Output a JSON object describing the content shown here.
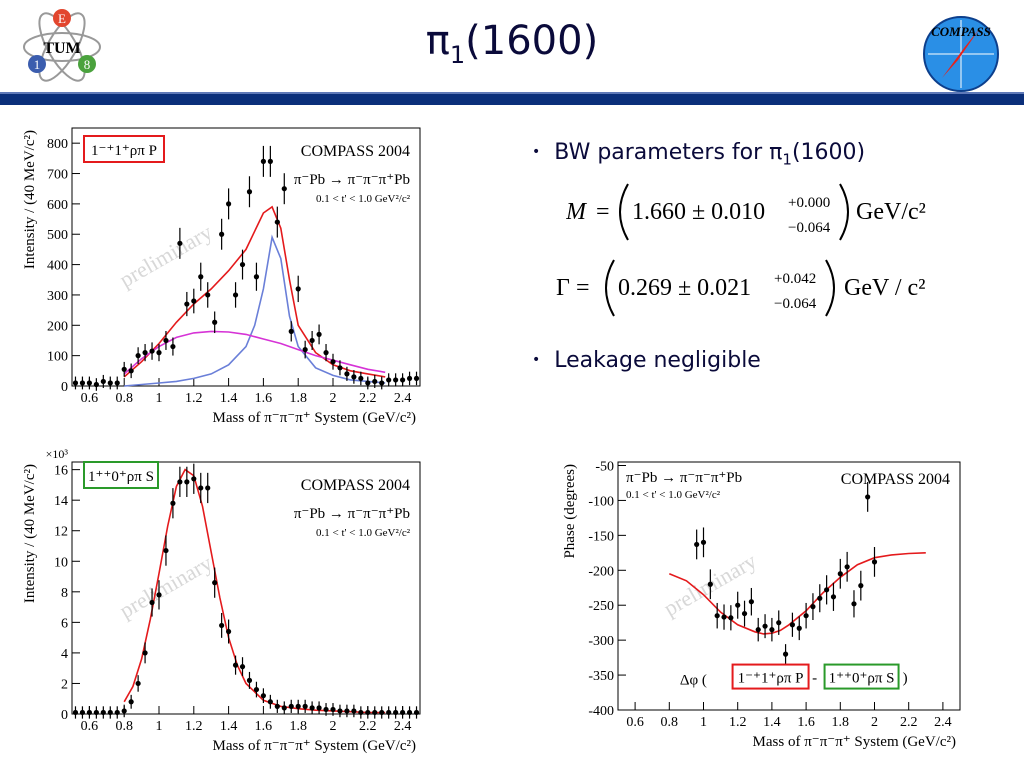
{
  "slide": {
    "title": "π1(1600)",
    "title_main": "π",
    "title_sub": "1",
    "title_rest": "(1600)"
  },
  "logos": {
    "left": {
      "letters": [
        "E",
        "1",
        "8"
      ],
      "name": "TUM"
    },
    "right": {
      "name": "COMPASS"
    }
  },
  "bullets": [
    {
      "text_main": "BW parameters for π",
      "text_sub": "1",
      "text_rest": "(1600)"
    },
    {
      "text_main": "Leakage negligible"
    }
  ],
  "equations": {
    "mass": {
      "lhs": "M",
      "value": "1.660 ± 0.010",
      "up": "+0.000",
      "down": "−0.064",
      "unit": "GeV/c²"
    },
    "width": {
      "lhs": "Γ",
      "value": "0.269 ± 0.021",
      "up": "+0.042",
      "down": "−0.064",
      "unit": "GeV / c²"
    }
  },
  "chart_data": [
    {
      "type": "scatter",
      "xlabel": "Mass of π⁻π⁻π⁺ System (GeV/c²)",
      "ylabel": "Intensity / (40 MeV/c²)",
      "xlim": [
        0.5,
        2.5
      ],
      "ylim": [
        0,
        850
      ],
      "xticks": [
        "0.6",
        "0.8",
        "1",
        "1.2",
        "1.4",
        "1.6",
        "1.8",
        "2",
        "2.2",
        "2.4"
      ],
      "yticks": [
        "0",
        "100",
        "200",
        "300",
        "400",
        "500",
        "600",
        "700",
        "800"
      ],
      "wave_label": "1⁻⁺1⁺ρπ P",
      "experiment": "COMPASS 2004",
      "reaction": "π⁻Pb → π⁻π⁻π⁺Pb",
      "tcut": "0.1 < t' < 1.0 GeV²/c²",
      "watermark": "preliminary",
      "data_points": [
        {
          "x": 0.52,
          "y": 10
        },
        {
          "x": 0.56,
          "y": 10
        },
        {
          "x": 0.6,
          "y": 10
        },
        {
          "x": 0.64,
          "y": 5
        },
        {
          "x": 0.68,
          "y": 15
        },
        {
          "x": 0.72,
          "y": 10
        },
        {
          "x": 0.76,
          "y": 10
        },
        {
          "x": 0.8,
          "y": 55
        },
        {
          "x": 0.84,
          "y": 50
        },
        {
          "x": 0.88,
          "y": 100
        },
        {
          "x": 0.92,
          "y": 110
        },
        {
          "x": 0.96,
          "y": 115
        },
        {
          "x": 1.0,
          "y": 110
        },
        {
          "x": 1.04,
          "y": 150
        },
        {
          "x": 1.08,
          "y": 130
        },
        {
          "x": 1.12,
          "y": 470
        },
        {
          "x": 1.16,
          "y": 270
        },
        {
          "x": 1.2,
          "y": 280
        },
        {
          "x": 1.24,
          "y": 360
        },
        {
          "x": 1.28,
          "y": 300
        },
        {
          "x": 1.32,
          "y": 210
        },
        {
          "x": 1.36,
          "y": 500
        },
        {
          "x": 1.4,
          "y": 600
        },
        {
          "x": 1.44,
          "y": 300
        },
        {
          "x": 1.48,
          "y": 400
        },
        {
          "x": 1.52,
          "y": 640
        },
        {
          "x": 1.56,
          "y": 360
        },
        {
          "x": 1.6,
          "y": 740
        },
        {
          "x": 1.64,
          "y": 740
        },
        {
          "x": 1.68,
          "y": 540
        },
        {
          "x": 1.72,
          "y": 650
        },
        {
          "x": 1.76,
          "y": 180
        },
        {
          "x": 1.8,
          "y": 320
        },
        {
          "x": 1.84,
          "y": 120
        },
        {
          "x": 1.88,
          "y": 150
        },
        {
          "x": 1.92,
          "y": 170
        },
        {
          "x": 1.96,
          "y": 110
        },
        {
          "x": 2.0,
          "y": 80
        },
        {
          "x": 2.04,
          "y": 60
        },
        {
          "x": 2.08,
          "y": 40
        },
        {
          "x": 2.12,
          "y": 30
        },
        {
          "x": 2.16,
          "y": 25
        },
        {
          "x": 2.2,
          "y": 10
        },
        {
          "x": 2.24,
          "y": 15
        },
        {
          "x": 2.28,
          "y": 10
        },
        {
          "x": 2.32,
          "y": 20
        },
        {
          "x": 2.36,
          "y": 20
        },
        {
          "x": 2.4,
          "y": 20
        },
        {
          "x": 2.44,
          "y": 25
        },
        {
          "x": 2.48,
          "y": 25
        }
      ],
      "curves": [
        {
          "color": "#e41a1c",
          "x": [
            0.8,
            0.9,
            1.0,
            1.1,
            1.2,
            1.3,
            1.4,
            1.5,
            1.55,
            1.6,
            1.65,
            1.7,
            1.75,
            1.8,
            1.9,
            2.0,
            2.1,
            2.2,
            2.3
          ],
          "y": [
            30,
            80,
            140,
            210,
            270,
            320,
            380,
            450,
            510,
            570,
            590,
            520,
            350,
            200,
            110,
            70,
            50,
            40,
            30
          ]
        },
        {
          "color": "#6a7fd8",
          "x": [
            0.8,
            0.9,
            1.0,
            1.1,
            1.2,
            1.3,
            1.4,
            1.5,
            1.55,
            1.6,
            1.65,
            1.7,
            1.75,
            1.8,
            1.9,
            2.0,
            2.1,
            2.2,
            2.3
          ],
          "y": [
            0,
            5,
            10,
            15,
            25,
            40,
            70,
            130,
            200,
            320,
            490,
            420,
            230,
            130,
            60,
            35,
            20,
            15,
            10
          ]
        },
        {
          "color": "#d633d6",
          "x": [
            0.8,
            0.9,
            1.0,
            1.1,
            1.2,
            1.3,
            1.4,
            1.5,
            1.6,
            1.7,
            1.8,
            1.9,
            2.0,
            2.1,
            2.2,
            2.3
          ],
          "y": [
            40,
            90,
            130,
            160,
            175,
            180,
            178,
            170,
            155,
            140,
            120,
            100,
            85,
            70,
            55,
            45
          ]
        }
      ]
    },
    {
      "type": "scatter",
      "xlabel": "Mass of π⁻π⁻π⁺ System (GeV/c²)",
      "ylabel": "Intensity / (40 MeV/c²)",
      "multiplier": "×10³",
      "xlim": [
        0.5,
        2.5
      ],
      "ylim": [
        0,
        16.5
      ],
      "xticks": [
        "0.6",
        "0.8",
        "1",
        "1.2",
        "1.4",
        "1.6",
        "1.8",
        "2",
        "2.2",
        "2.4"
      ],
      "yticks": [
        "0",
        "2",
        "4",
        "6",
        "8",
        "10",
        "12",
        "14",
        "16"
      ],
      "wave_label": "1⁺⁺0⁺ρπ S",
      "experiment": "COMPASS 2004",
      "reaction": "π⁻Pb → π⁻π⁻π⁺Pb",
      "tcut": "0.1 < t' < 1.0 GeV²/c²",
      "watermark": "preliminary",
      "data_points": [
        {
          "x": 0.52,
          "y": 0.1
        },
        {
          "x": 0.56,
          "y": 0.1
        },
        {
          "x": 0.6,
          "y": 0.1
        },
        {
          "x": 0.64,
          "y": 0.1
        },
        {
          "x": 0.68,
          "y": 0.1
        },
        {
          "x": 0.72,
          "y": 0.1
        },
        {
          "x": 0.76,
          "y": 0.1
        },
        {
          "x": 0.8,
          "y": 0.2
        },
        {
          "x": 0.84,
          "y": 0.8
        },
        {
          "x": 0.88,
          "y": 2.0
        },
        {
          "x": 0.92,
          "y": 4.0
        },
        {
          "x": 0.96,
          "y": 7.3
        },
        {
          "x": 1.0,
          "y": 7.8
        },
        {
          "x": 1.04,
          "y": 10.7
        },
        {
          "x": 1.08,
          "y": 13.8
        },
        {
          "x": 1.12,
          "y": 15.2
        },
        {
          "x": 1.16,
          "y": 15.2
        },
        {
          "x": 1.2,
          "y": 15.4
        },
        {
          "x": 1.24,
          "y": 14.8
        },
        {
          "x": 1.28,
          "y": 14.8
        },
        {
          "x": 1.32,
          "y": 8.6
        },
        {
          "x": 1.36,
          "y": 5.8
        },
        {
          "x": 1.4,
          "y": 5.4
        },
        {
          "x": 1.44,
          "y": 3.2
        },
        {
          "x": 1.48,
          "y": 3.1
        },
        {
          "x": 1.52,
          "y": 2.2
        },
        {
          "x": 1.56,
          "y": 1.6
        },
        {
          "x": 1.6,
          "y": 1.2
        },
        {
          "x": 1.64,
          "y": 0.8
        },
        {
          "x": 1.68,
          "y": 0.5
        },
        {
          "x": 1.72,
          "y": 0.4
        },
        {
          "x": 1.76,
          "y": 0.5
        },
        {
          "x": 1.8,
          "y": 0.5
        },
        {
          "x": 1.84,
          "y": 0.5
        },
        {
          "x": 1.88,
          "y": 0.4
        },
        {
          "x": 1.92,
          "y": 0.4
        },
        {
          "x": 1.96,
          "y": 0.3
        },
        {
          "x": 2.0,
          "y": 0.3
        },
        {
          "x": 2.04,
          "y": 0.2
        },
        {
          "x": 2.08,
          "y": 0.2
        },
        {
          "x": 2.12,
          "y": 0.2
        },
        {
          "x": 2.16,
          "y": 0.1
        },
        {
          "x": 2.2,
          "y": 0.1
        },
        {
          "x": 2.24,
          "y": 0.1
        },
        {
          "x": 2.28,
          "y": 0.1
        },
        {
          "x": 2.32,
          "y": 0.1
        },
        {
          "x": 2.36,
          "y": 0.1
        },
        {
          "x": 2.4,
          "y": 0.1
        },
        {
          "x": 2.44,
          "y": 0.1
        },
        {
          "x": 2.48,
          "y": 0.1
        }
      ],
      "curves": [
        {
          "color": "#e41a1c",
          "x": [
            0.8,
            0.85,
            0.9,
            0.95,
            1.0,
            1.05,
            1.1,
            1.15,
            1.2,
            1.25,
            1.3,
            1.35,
            1.4,
            1.45,
            1.5,
            1.6,
            1.7,
            1.8,
            1.9,
            2.0,
            2.1,
            2.2,
            2.3
          ],
          "y": [
            0.8,
            1.8,
            3.6,
            6.2,
            9.2,
            12.3,
            14.9,
            16.0,
            15.6,
            13.6,
            10.6,
            7.6,
            5.0,
            3.2,
            2.0,
            0.9,
            0.5,
            0.35,
            0.25,
            0.2,
            0.15,
            0.1,
            0.1
          ]
        }
      ]
    },
    {
      "type": "scatter",
      "xlabel": "Mass of π⁻π⁻π⁺ System (GeV/c²)",
      "ylabel": "Phase (degrees)",
      "xlim": [
        0.5,
        2.5
      ],
      "ylim": [
        -400,
        -45
      ],
      "xticks": [
        "0.6",
        "0.8",
        "1",
        "1.2",
        "1.4",
        "1.6",
        "1.8",
        "2",
        "2.2",
        "2.4"
      ],
      "yticks": [
        "-50",
        "-100",
        "-150",
        "-200",
        "-250",
        "-300",
        "-350",
        "-400"
      ],
      "experiment": "COMPASS 2004",
      "reaction": "π⁻Pb → π⁻π⁻π⁺Pb",
      "tcut": "0.1 < t' < 1.0 GeV²/c²",
      "watermark": "preliminary",
      "phase_label_prefix": "Δφ (",
      "phase_wave_a": "1⁻⁺1⁺ρπ P",
      "phase_sep": " - ",
      "phase_wave_b": "1⁺⁺0⁺ρπ S",
      "phase_label_suffix": ")",
      "data_points": [
        {
          "x": 0.96,
          "y": -163
        },
        {
          "x": 1.0,
          "y": -160
        },
        {
          "x": 1.04,
          "y": -220
        },
        {
          "x": 1.08,
          "y": -265
        },
        {
          "x": 1.12,
          "y": -267
        },
        {
          "x": 1.16,
          "y": -268
        },
        {
          "x": 1.2,
          "y": -250
        },
        {
          "x": 1.24,
          "y": -262
        },
        {
          "x": 1.28,
          "y": -245
        },
        {
          "x": 1.32,
          "y": -285
        },
        {
          "x": 1.36,
          "y": -280
        },
        {
          "x": 1.4,
          "y": -285
        },
        {
          "x": 1.44,
          "y": -275
        },
        {
          "x": 1.48,
          "y": -320
        },
        {
          "x": 1.52,
          "y": -278
        },
        {
          "x": 1.56,
          "y": -283
        },
        {
          "x": 1.6,
          "y": -265
        },
        {
          "x": 1.64,
          "y": -252
        },
        {
          "x": 1.68,
          "y": -240
        },
        {
          "x": 1.72,
          "y": -228
        },
        {
          "x": 1.76,
          "y": -238
        },
        {
          "x": 1.8,
          "y": -205
        },
        {
          "x": 1.84,
          "y": -195
        },
        {
          "x": 1.88,
          "y": -248
        },
        {
          "x": 1.92,
          "y": -222
        },
        {
          "x": 1.96,
          "y": -95
        },
        {
          "x": 2.0,
          "y": -188
        }
      ],
      "curves": [
        {
          "color": "#e41a1c",
          "x": [
            0.8,
            0.9,
            1.0,
            1.1,
            1.2,
            1.3,
            1.35,
            1.4,
            1.45,
            1.5,
            1.6,
            1.7,
            1.8,
            1.9,
            2.0,
            2.1,
            2.2,
            2.3
          ],
          "y": [
            -205,
            -215,
            -235,
            -260,
            -278,
            -288,
            -291,
            -290,
            -286,
            -278,
            -258,
            -232,
            -210,
            -192,
            -182,
            -178,
            -176,
            -175
          ]
        }
      ]
    }
  ]
}
